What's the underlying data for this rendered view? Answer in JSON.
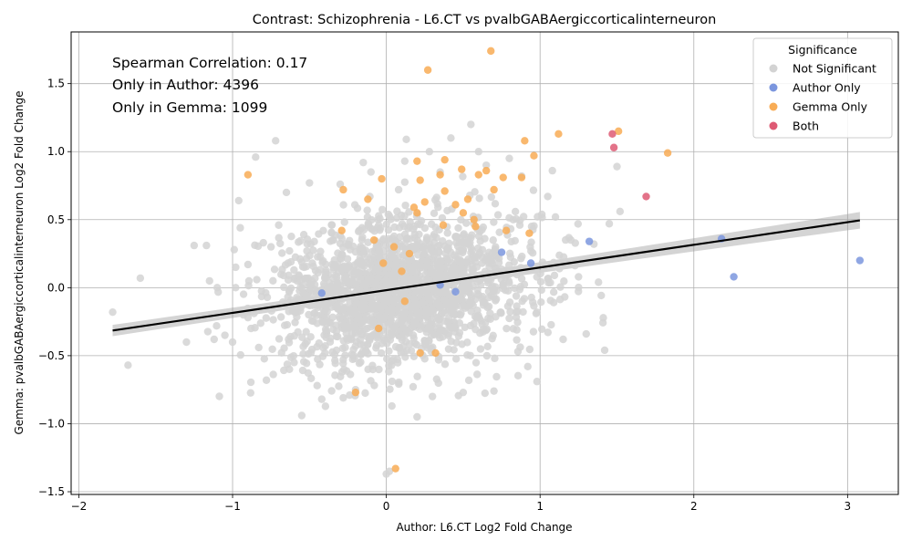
{
  "chart_data": {
    "type": "scatter",
    "title": "Contrast: Schizophrenia - L6.CT vs pvalbGABAergiccorticalinterneuron",
    "xlabel": "Author: L6.CT Log2 Fold Change",
    "ylabel": "Gemma: pvalbGABAergiccorticalinterneuron Log2 Fold Change",
    "xlim": [
      -2.05,
      3.33
    ],
    "ylim": [
      -1.52,
      1.88
    ],
    "xticks": [
      -2,
      -1,
      0,
      1,
      2,
      3
    ],
    "yticks": [
      -1.5,
      -1.0,
      -0.5,
      0.0,
      0.5,
      1.0,
      1.5
    ],
    "grid": true,
    "legend": {
      "title": "Significance",
      "position": "top-right",
      "entries": [
        {
          "label": "Not Significant",
          "color": "#d3d3d3"
        },
        {
          "label": "Author Only",
          "color": "#7b96de"
        },
        {
          "label": "Gemma Only",
          "color": "#f8ac55"
        },
        {
          "label": "Both",
          "color": "#de5a74"
        }
      ]
    },
    "annotations": [
      "Spearman Correlation: 0.17",
      "Only in Author: 4396",
      "Only in Gemma: 1099"
    ],
    "regression_line": {
      "x": [
        -1.78,
        3.08
      ],
      "y": [
        -0.315,
        0.495
      ],
      "ci_halfwidth": [
        0.028,
        0.055
      ],
      "color": "#000000"
    },
    "series": [
      {
        "name": "Not Significant",
        "color": "#d3d3d3",
        "points": [
          [
            -1.78,
            -0.18
          ],
          [
            -1.68,
            -0.57
          ],
          [
            -1.6,
            0.07
          ],
          [
            -1.3,
            -0.4
          ],
          [
            -1.25,
            0.31
          ],
          [
            -1.17,
            0.31
          ],
          [
            -1.12,
            -0.38
          ],
          [
            -1.1,
            0.0
          ],
          [
            -1.05,
            -0.35
          ],
          [
            -0.98,
            0.15
          ],
          [
            -0.96,
            0.64
          ],
          [
            -0.95,
            0.44
          ],
          [
            -0.93,
            -0.2
          ],
          [
            -0.9,
            -0.22
          ],
          [
            -0.88,
            -0.3
          ],
          [
            -0.85,
            0.96
          ],
          [
            -0.83,
            -0.44
          ],
          [
            -0.8,
            0.33
          ],
          [
            -0.78,
            -0.68
          ],
          [
            -0.75,
            0.3
          ],
          [
            -0.72,
            1.08
          ],
          [
            -0.7,
            0.46
          ],
          [
            -0.65,
            0.7
          ],
          [
            -0.63,
            -0.6
          ],
          [
            -0.6,
            -0.55
          ],
          [
            -0.55,
            -0.94
          ],
          [
            -0.5,
            0.77
          ],
          [
            -0.45,
            -0.72
          ],
          [
            -0.42,
            -0.82
          ],
          [
            -0.3,
            0.76
          ],
          [
            -0.28,
            -0.81
          ],
          [
            -0.15,
            0.92
          ],
          [
            0.0,
            -1.37
          ],
          [
            0.02,
            -1.35
          ],
          [
            0.08,
            0.72
          ],
          [
            0.12,
            0.93
          ],
          [
            0.13,
            1.09
          ],
          [
            0.2,
            -0.95
          ],
          [
            0.28,
            1.0
          ],
          [
            0.42,
            1.1
          ],
          [
            0.55,
            1.2
          ],
          [
            0.6,
            1.0
          ],
          [
            0.8,
            0.95
          ],
          [
            0.88,
            0.82
          ],
          [
            0.92,
            -0.58
          ],
          [
            0.98,
            -0.69
          ],
          [
            1.05,
            0.67
          ],
          [
            1.08,
            0.86
          ],
          [
            1.1,
            0.52
          ],
          [
            1.15,
            -0.38
          ],
          [
            1.2,
            0.35
          ],
          [
            1.25,
            0.08
          ],
          [
            1.3,
            -0.34
          ],
          [
            1.35,
            0.32
          ],
          [
            1.38,
            0.04
          ],
          [
            1.42,
            -0.46
          ],
          [
            1.45,
            0.47
          ],
          [
            1.5,
            0.89
          ],
          [
            1.52,
            0.56
          ],
          [
            -1.15,
            0.05
          ],
          [
            -0.98,
            0.0
          ],
          [
            -1.0,
            -0.4
          ],
          [
            0.7,
            -0.76
          ],
          [
            0.5,
            -0.77
          ],
          [
            -0.2,
            -0.75
          ],
          [
            0.3,
            -0.8
          ],
          [
            -0.1,
            0.85
          ],
          [
            0.35,
            0.85
          ],
          [
            0.65,
            0.9
          ]
        ],
        "cloud": {
          "center": [
            0.1,
            -0.02
          ],
          "spread": [
            0.42,
            0.26
          ],
          "count": 1900,
          "seed": 7
        }
      },
      {
        "name": "Author Only",
        "color": "#7b96de",
        "points": [
          [
            3.08,
            0.2
          ],
          [
            2.26,
            0.08
          ],
          [
            2.18,
            0.36
          ],
          [
            1.32,
            0.34
          ],
          [
            0.94,
            0.18
          ],
          [
            0.75,
            0.26
          ],
          [
            0.45,
            -0.03
          ],
          [
            -0.42,
            -0.04
          ],
          [
            0.35,
            0.02
          ]
        ]
      },
      {
        "name": "Gemma Only",
        "color": "#f8ac55",
        "points": [
          [
            0.68,
            1.74
          ],
          [
            0.27,
            1.6
          ],
          [
            1.51,
            1.15
          ],
          [
            1.12,
            1.13
          ],
          [
            0.9,
            1.08
          ],
          [
            0.96,
            0.97
          ],
          [
            1.83,
            0.99
          ],
          [
            0.2,
            0.93
          ],
          [
            0.38,
            0.94
          ],
          [
            0.49,
            0.87
          ],
          [
            0.65,
            0.86
          ],
          [
            0.6,
            0.83
          ],
          [
            0.35,
            0.83
          ],
          [
            -0.9,
            0.83
          ],
          [
            0.76,
            0.81
          ],
          [
            0.88,
            0.81
          ],
          [
            -0.03,
            0.8
          ],
          [
            0.22,
            0.79
          ],
          [
            -0.28,
            0.72
          ],
          [
            0.38,
            0.71
          ],
          [
            0.7,
            0.72
          ],
          [
            -0.12,
            0.65
          ],
          [
            0.53,
            0.65
          ],
          [
            0.25,
            0.63
          ],
          [
            0.45,
            0.61
          ],
          [
            0.18,
            0.59
          ],
          [
            0.2,
            0.55
          ],
          [
            0.5,
            0.55
          ],
          [
            0.57,
            0.5
          ],
          [
            0.37,
            0.46
          ],
          [
            0.58,
            0.45
          ],
          [
            0.78,
            0.42
          ],
          [
            -0.29,
            0.42
          ],
          [
            0.93,
            0.4
          ],
          [
            0.05,
            0.3
          ],
          [
            -0.08,
            0.35
          ],
          [
            0.15,
            0.25
          ],
          [
            0.12,
            -0.1
          ],
          [
            -0.05,
            -0.3
          ],
          [
            0.22,
            -0.48
          ],
          [
            0.06,
            -1.33
          ],
          [
            -0.2,
            -0.77
          ],
          [
            0.32,
            -0.48
          ],
          [
            0.1,
            0.12
          ],
          [
            -0.02,
            0.18
          ]
        ]
      },
      {
        "name": "Both",
        "color": "#de5a74",
        "points": [
          [
            1.47,
            1.13
          ],
          [
            1.48,
            1.03
          ],
          [
            1.69,
            0.67
          ]
        ]
      }
    ]
  }
}
